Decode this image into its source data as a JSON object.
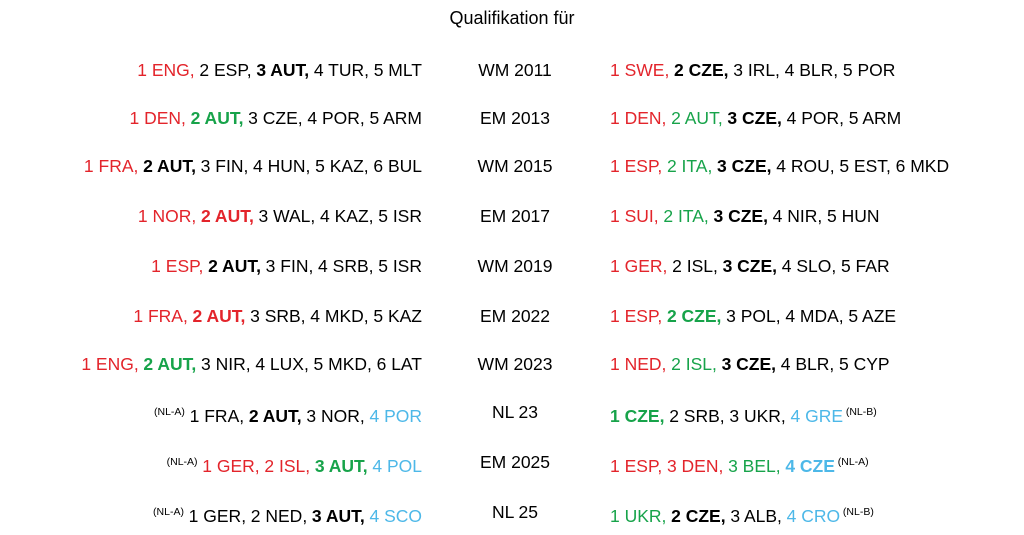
{
  "header": {
    "title": "Qualifikation für"
  },
  "table": {
    "rows": [
      {
        "left": [
          {
            "text": "1 ENG,",
            "color": "red"
          },
          {
            "text": "2 ESP,"
          },
          {
            "text": "3 AUT,",
            "bold": true
          },
          {
            "text": "4 TUR,"
          },
          {
            "text": "5 MLT"
          }
        ],
        "event": "WM 2011",
        "right": [
          {
            "text": "1 SWE,",
            "color": "red"
          },
          {
            "text": "2 CZE,",
            "bold": true
          },
          {
            "text": "3 IRL,"
          },
          {
            "text": "4 BLR,"
          },
          {
            "text": "5 POR"
          }
        ]
      },
      {
        "left": [
          {
            "text": "1 DEN,",
            "color": "red"
          },
          {
            "text": "2 AUT,",
            "color": "green",
            "bold": true
          },
          {
            "text": "3 CZE,"
          },
          {
            "text": "4 POR,"
          },
          {
            "text": "5 ARM"
          }
        ],
        "event": "EM 2013",
        "right": [
          {
            "text": "1 DEN,",
            "color": "red"
          },
          {
            "text": "2 AUT,",
            "color": "green"
          },
          {
            "text": "3 CZE,",
            "bold": true
          },
          {
            "text": "4 POR,"
          },
          {
            "text": "5 ARM"
          }
        ]
      },
      {
        "left": [
          {
            "text": "1 FRA,",
            "color": "red"
          },
          {
            "text": "2 AUT,",
            "bold": true
          },
          {
            "text": "3 FIN,"
          },
          {
            "text": "4 HUN,"
          },
          {
            "text": "5 KAZ,"
          },
          {
            "text": "6 BUL"
          }
        ],
        "event": "WM 2015",
        "right": [
          {
            "text": "1 ESP,",
            "color": "red"
          },
          {
            "text": "2 ITA,",
            "color": "green"
          },
          {
            "text": "3 CZE,",
            "bold": true
          },
          {
            "text": "4 ROU,"
          },
          {
            "text": "5 EST,"
          },
          {
            "text": "6 MKD"
          }
        ]
      },
      {
        "left": [
          {
            "text": "1 NOR,",
            "color": "red"
          },
          {
            "text": "2 AUT,",
            "color": "red",
            "bold": true
          },
          {
            "text": "3 WAL,"
          },
          {
            "text": "4 KAZ,"
          },
          {
            "text": "5 ISR"
          }
        ],
        "event": "EM 2017",
        "right": [
          {
            "text": "1 SUI,",
            "color": "red"
          },
          {
            "text": "2 ITA,",
            "color": "green"
          },
          {
            "text": "3 CZE,",
            "bold": true
          },
          {
            "text": "4 NIR,"
          },
          {
            "text": "5 HUN"
          }
        ]
      },
      {
        "left": [
          {
            "text": "1 ESP,",
            "color": "red"
          },
          {
            "text": "2 AUT,",
            "bold": true
          },
          {
            "text": "3 FIN,"
          },
          {
            "text": "4 SRB,"
          },
          {
            "text": "5 ISR"
          }
        ],
        "event": "WM 2019",
        "right": [
          {
            "text": "1 GER,",
            "color": "red"
          },
          {
            "text": "2 ISL,"
          },
          {
            "text": "3 CZE,",
            "bold": true
          },
          {
            "text": "4 SLO,"
          },
          {
            "text": "5 FAR"
          }
        ]
      },
      {
        "left": [
          {
            "text": "1 FRA,",
            "color": "red"
          },
          {
            "text": "2 AUT,",
            "color": "red",
            "bold": true
          },
          {
            "text": "3 SRB,"
          },
          {
            "text": "4 MKD,"
          },
          {
            "text": "5 KAZ"
          }
        ],
        "event": "EM 2022",
        "right": [
          {
            "text": "1 ESP,",
            "color": "red"
          },
          {
            "text": "2 CZE,",
            "color": "green",
            "bold": true
          },
          {
            "text": "3 POL,"
          },
          {
            "text": "4 MDA,"
          },
          {
            "text": "5 AZE"
          }
        ]
      },
      {
        "left": [
          {
            "text": "1 ENG,",
            "color": "red"
          },
          {
            "text": "2 AUT,",
            "color": "green",
            "bold": true
          },
          {
            "text": "3 NIR,"
          },
          {
            "text": "4 LUX,"
          },
          {
            "text": "5 MKD,"
          },
          {
            "text": "6 LAT"
          }
        ],
        "event": "WM 2023",
        "right": [
          {
            "text": "1 NED,",
            "color": "red"
          },
          {
            "text": "2 ISL,",
            "color": "green"
          },
          {
            "text": "3 CZE,",
            "bold": true
          },
          {
            "text": "4 BLR,"
          },
          {
            "text": "5 CYP"
          }
        ]
      },
      {
        "left": [
          {
            "text": "(NL-A)",
            "sup": true
          },
          {
            "text": "1 FRA,"
          },
          {
            "text": "2 AUT,",
            "bold": true
          },
          {
            "text": "3 NOR,"
          },
          {
            "text": "4 POR",
            "color": "blue"
          }
        ],
        "event": "NL 23",
        "right": [
          {
            "text": "1 CZE,",
            "color": "green",
            "bold": true
          },
          {
            "text": "2 SRB,"
          },
          {
            "text": "3 UKR,"
          },
          {
            "text": "4 GRE",
            "color": "blue"
          },
          {
            "text": "(NL-B)",
            "sup": true
          }
        ]
      },
      {
        "left": [
          {
            "text": "(NL-A)",
            "sup": true
          },
          {
            "text": "1 GER,",
            "color": "red"
          },
          {
            "text": "2 ISL,",
            "color": "red"
          },
          {
            "text": "3 AUT,",
            "color": "green",
            "bold": true
          },
          {
            "text": "4 POL",
            "color": "blue"
          }
        ],
        "event": "EM 2025",
        "right": [
          {
            "text": "1 ESP,",
            "color": "red"
          },
          {
            "text": "3 DEN,",
            "color": "red"
          },
          {
            "text": "3 BEL,",
            "color": "green"
          },
          {
            "text": "4 CZE",
            "color": "blue",
            "bold": true
          },
          {
            "text": "(NL-A)",
            "sup": true
          }
        ]
      },
      {
        "left": [
          {
            "text": "(NL-A)",
            "sup": true
          },
          {
            "text": "1 GER,"
          },
          {
            "text": "2 NED,"
          },
          {
            "text": "3 AUT,",
            "bold": true
          },
          {
            "text": "4 SCO",
            "color": "blue"
          }
        ],
        "event": "NL 25",
        "right": [
          {
            "text": "1 UKR,",
            "color": "green"
          },
          {
            "text": "2 CZE,",
            "bold": true
          },
          {
            "text": "3 ALB,"
          },
          {
            "text": "4 CRO",
            "color": "blue"
          },
          {
            "text": "(NL-B)",
            "sup": true
          }
        ]
      }
    ]
  }
}
